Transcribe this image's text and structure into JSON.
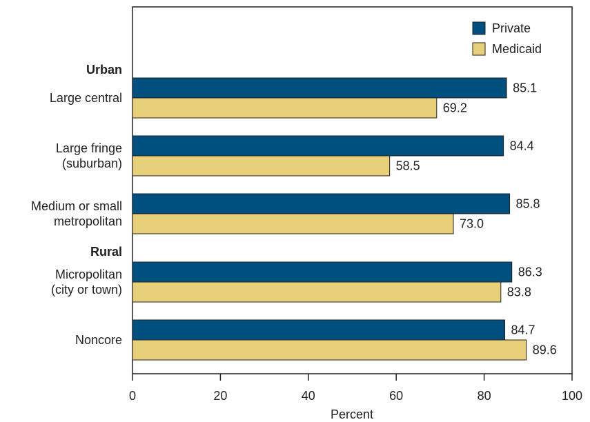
{
  "chart_data": {
    "type": "bar",
    "orientation": "horizontal",
    "xlabel": "Percent",
    "xlim": [
      0,
      100
    ],
    "xticks": [
      "0",
      "20",
      "40",
      "60",
      "80",
      "100"
    ],
    "grid": false,
    "legend_position": "top-right",
    "groups": [
      {
        "label": "Urban",
        "categories": [
          "Large central",
          "Large fringe\n(suburban)",
          "Medium or small\nmetropolitan"
        ]
      },
      {
        "label": "Rural",
        "categories": [
          "Micropolitan\n(city or town)",
          "Noncore"
        ]
      }
    ],
    "categories": [
      "Large central",
      "Large fringe\n(suburban)",
      "Medium or small\nmetropolitan",
      "Micropolitan\n(city or town)",
      "Noncore"
    ],
    "series": [
      {
        "name": "Private",
        "color": "#00507f",
        "values": [
          85.1,
          84.4,
          85.8,
          86.3,
          84.7
        ],
        "labels": [
          "85.1",
          "84.4",
          "85.8",
          "86.3",
          "84.7"
        ]
      },
      {
        "name": "Medicaid",
        "color": "#e8cf7a",
        "values": [
          69.2,
          58.5,
          73.0,
          83.8,
          89.6
        ],
        "labels": [
          "69.2",
          "58.5",
          "73.0",
          "83.8",
          "89.6"
        ]
      }
    ]
  }
}
